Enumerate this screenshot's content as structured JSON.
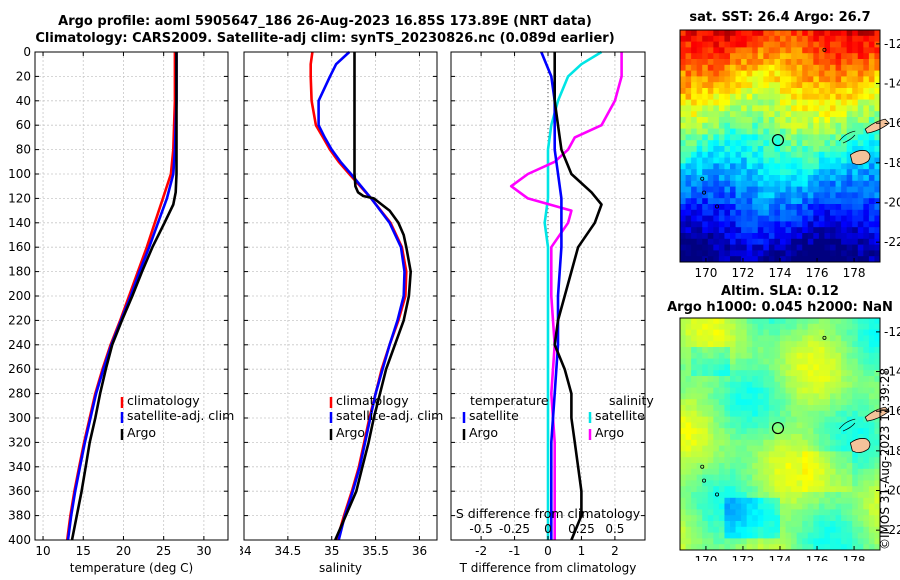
{
  "header": {
    "title_line1": "Argo profile: aoml 5905647_186 26-Aug-2023 16.85S 173.89E (NRT data)",
    "title_line2": "Climatology: CARS2009. Satellite-adj clim: synTS_20230826.nc (0.089d earlier)"
  },
  "maps": {
    "sst_title": "sat. SST: 26.4 Argo: 26.7",
    "sla_title_line1": "Altim. SLA: 0.12",
    "sla_title_line2": "Argo h1000: 0.045 h2000: NaN",
    "lon_ticks": [
      "170",
      "172",
      "174",
      "176",
      "178"
    ],
    "lat_ticks": [
      "-12",
      "-14",
      "-16",
      "-18",
      "-20",
      "-22"
    ],
    "profile_marker": {
      "lon": 173.89,
      "lat": -16.85
    }
  },
  "footer": {
    "credit": "©IMOS 31-Aug-2023 11:39:28"
  },
  "colors": {
    "climatology": "#ff0000",
    "satellite": "#0000ff",
    "argo": "#000000",
    "salinity_sat": "#00e5e5",
    "salinity_argo": "#ff00ff"
  },
  "chart_data": [
    {
      "type": "line",
      "name": "temperature",
      "xlabel": "temperature (deg C)",
      "xlim": [
        9,
        33
      ],
      "ylim": [
        400,
        0
      ],
      "xticks": [
        10,
        15,
        20,
        25,
        30
      ],
      "yticks": [
        0,
        20,
        40,
        60,
        80,
        100,
        120,
        140,
        160,
        180,
        200,
        220,
        240,
        260,
        280,
        300,
        320,
        340,
        360,
        380,
        400
      ],
      "legend": [
        "climatology",
        "satellite-adj. clim",
        "Argo"
      ],
      "series": [
        {
          "name": "climatology",
          "depth": [
            0,
            20,
            40,
            60,
            80,
            100,
            120,
            140,
            160,
            180,
            200,
            220,
            240,
            260,
            280,
            300,
            320,
            340,
            360,
            380,
            400
          ],
          "values": [
            26.4,
            26.4,
            26.4,
            26.3,
            26.2,
            25.9,
            24.9,
            23.9,
            22.9,
            21.8,
            20.7,
            19.6,
            18.4,
            17.4,
            16.5,
            15.8,
            15.1,
            14.5,
            13.9,
            13.4,
            13.0
          ]
        },
        {
          "name": "satellite-adj. clim",
          "depth": [
            0,
            20,
            40,
            60,
            80,
            100,
            120,
            140,
            160,
            180,
            200,
            220,
            240,
            260,
            280,
            300,
            320,
            340,
            360,
            380,
            400
          ],
          "values": [
            26.6,
            26.6,
            26.6,
            26.5,
            26.4,
            26.2,
            25.4,
            24.3,
            23.2,
            22.0,
            20.9,
            19.7,
            18.5,
            17.5,
            16.6,
            15.9,
            15.2,
            14.6,
            14.0,
            13.5,
            13.1
          ]
        },
        {
          "name": "Argo",
          "depth": [
            0,
            20,
            40,
            60,
            80,
            100,
            115,
            125,
            140,
            160,
            180,
            200,
            220,
            240,
            260,
            280,
            300,
            320,
            340,
            360,
            380,
            400
          ],
          "values": [
            26.6,
            26.6,
            26.6,
            26.6,
            26.6,
            26.6,
            26.5,
            26.2,
            25.1,
            23.6,
            22.3,
            21.1,
            19.8,
            18.6,
            17.8,
            17.1,
            16.5,
            15.8,
            15.3,
            14.8,
            14.2,
            13.6
          ]
        }
      ]
    },
    {
      "type": "line",
      "name": "salinity",
      "xlabel": "salinity",
      "xlim": [
        34,
        36.2
      ],
      "ylim": [
        400,
        0
      ],
      "xticks": [
        34,
        34.5,
        35,
        35.5,
        36
      ],
      "legend": [
        "climatology",
        "satellite-adj. clim",
        "Argo"
      ],
      "series": [
        {
          "name": "climatology",
          "depth": [
            0,
            10,
            20,
            40,
            60,
            70,
            80,
            90,
            100,
            120,
            140,
            160,
            180,
            200,
            220,
            240,
            260,
            280,
            300,
            320,
            340,
            360,
            380,
            400
          ],
          "values": [
            34.78,
            34.76,
            34.76,
            34.77,
            34.82,
            34.9,
            34.98,
            35.08,
            35.2,
            35.45,
            35.67,
            35.8,
            35.85,
            35.84,
            35.76,
            35.66,
            35.57,
            35.5,
            35.43,
            35.37,
            35.31,
            35.23,
            35.14,
            35.06
          ]
        },
        {
          "name": "satellite-adj. clim",
          "depth": [
            0,
            10,
            20,
            40,
            60,
            70,
            80,
            90,
            100,
            120,
            140,
            160,
            180,
            200,
            220,
            240,
            260,
            280,
            300,
            320,
            340,
            360,
            380,
            400
          ],
          "values": [
            35.2,
            35.05,
            34.98,
            34.85,
            34.85,
            34.92,
            35.0,
            35.1,
            35.22,
            35.45,
            35.66,
            35.79,
            35.83,
            35.82,
            35.75,
            35.66,
            35.58,
            35.5,
            35.44,
            35.38,
            35.32,
            35.24,
            35.15,
            35.08
          ]
        },
        {
          "name": "Argo",
          "depth": [
            0,
            20,
            40,
            60,
            80,
            100,
            110,
            115,
            118,
            120,
            130,
            140,
            150,
            160,
            180,
            200,
            220,
            240,
            260,
            280,
            300,
            320,
            340,
            360,
            380,
            400
          ],
          "values": [
            35.26,
            35.26,
            35.26,
            35.26,
            35.26,
            35.26,
            35.27,
            35.3,
            35.36,
            35.48,
            35.66,
            35.76,
            35.82,
            35.85,
            35.9,
            35.88,
            35.82,
            35.72,
            35.62,
            35.55,
            35.48,
            35.42,
            35.35,
            35.28,
            35.16,
            35.04
          ]
        }
      ]
    },
    {
      "type": "line",
      "name": "difference",
      "xlabel": "T difference from climatology",
      "xlabel_top": "S difference from climatology",
      "xlim": [
        -2.9,
        2.9
      ],
      "ylim": [
        400,
        0
      ],
      "xticks": [
        -2,
        -1,
        0,
        1,
        2
      ],
      "xticks_s_labels": [
        "-0.5",
        "-0.25",
        "0",
        "0.25",
        "0.5"
      ],
      "legend_temperature_title": "temperature",
      "legend_salinity_title": "salinity",
      "legend_temperature": [
        "satellite",
        "Argo"
      ],
      "legend_salinity": [
        "satellite",
        "Argo"
      ],
      "series": [
        {
          "name": "temperature satellite",
          "depth": [
            0,
            20,
            40,
            80,
            120,
            160,
            200,
            240,
            280,
            320,
            360,
            400
          ],
          "values": [
            -0.2,
            0.1,
            0.2,
            0.2,
            0.4,
            0.4,
            0.3,
            0.3,
            0.2,
            0.1,
            0.1,
            0.1
          ]
        },
        {
          "name": "temperature Argo",
          "depth": [
            0,
            20,
            40,
            60,
            80,
            100,
            115,
            125,
            140,
            160,
            180,
            200,
            220,
            240,
            260,
            280,
            300,
            320,
            340,
            360,
            380,
            400
          ],
          "values": [
            0.2,
            0.2,
            0.2,
            0.3,
            0.4,
            0.7,
            1.3,
            1.6,
            1.4,
            0.9,
            0.7,
            0.5,
            0.3,
            0.2,
            0.5,
            0.7,
            0.7,
            0.8,
            0.9,
            1.0,
            1.0,
            0.7
          ]
        },
        {
          "name": "salinity satellite",
          "depth": [
            0,
            10,
            20,
            40,
            60,
            80,
            100,
            120,
            140,
            160,
            200,
            240,
            280,
            320,
            360,
            400
          ],
          "values": [
            1.6,
            1.0,
            0.6,
            0.3,
            0.1,
            0.0,
            0.0,
            0.0,
            -0.1,
            0.0,
            0.0,
            0.0,
            0.0,
            0.0,
            0.0,
            0.0
          ]
        },
        {
          "name": "salinity Argo",
          "depth": [
            0,
            10,
            20,
            40,
            60,
            70,
            80,
            90,
            100,
            110,
            120,
            130,
            140,
            160,
            200,
            240,
            280,
            320,
            360,
            400
          ],
          "values": [
            2.2,
            2.2,
            2.2,
            2.0,
            1.6,
            0.8,
            0.6,
            0.2,
            -0.6,
            -1.1,
            -0.6,
            0.7,
            0.6,
            0.1,
            0.1,
            0.2,
            0.1,
            0.2,
            0.2,
            0.2
          ]
        }
      ]
    }
  ]
}
